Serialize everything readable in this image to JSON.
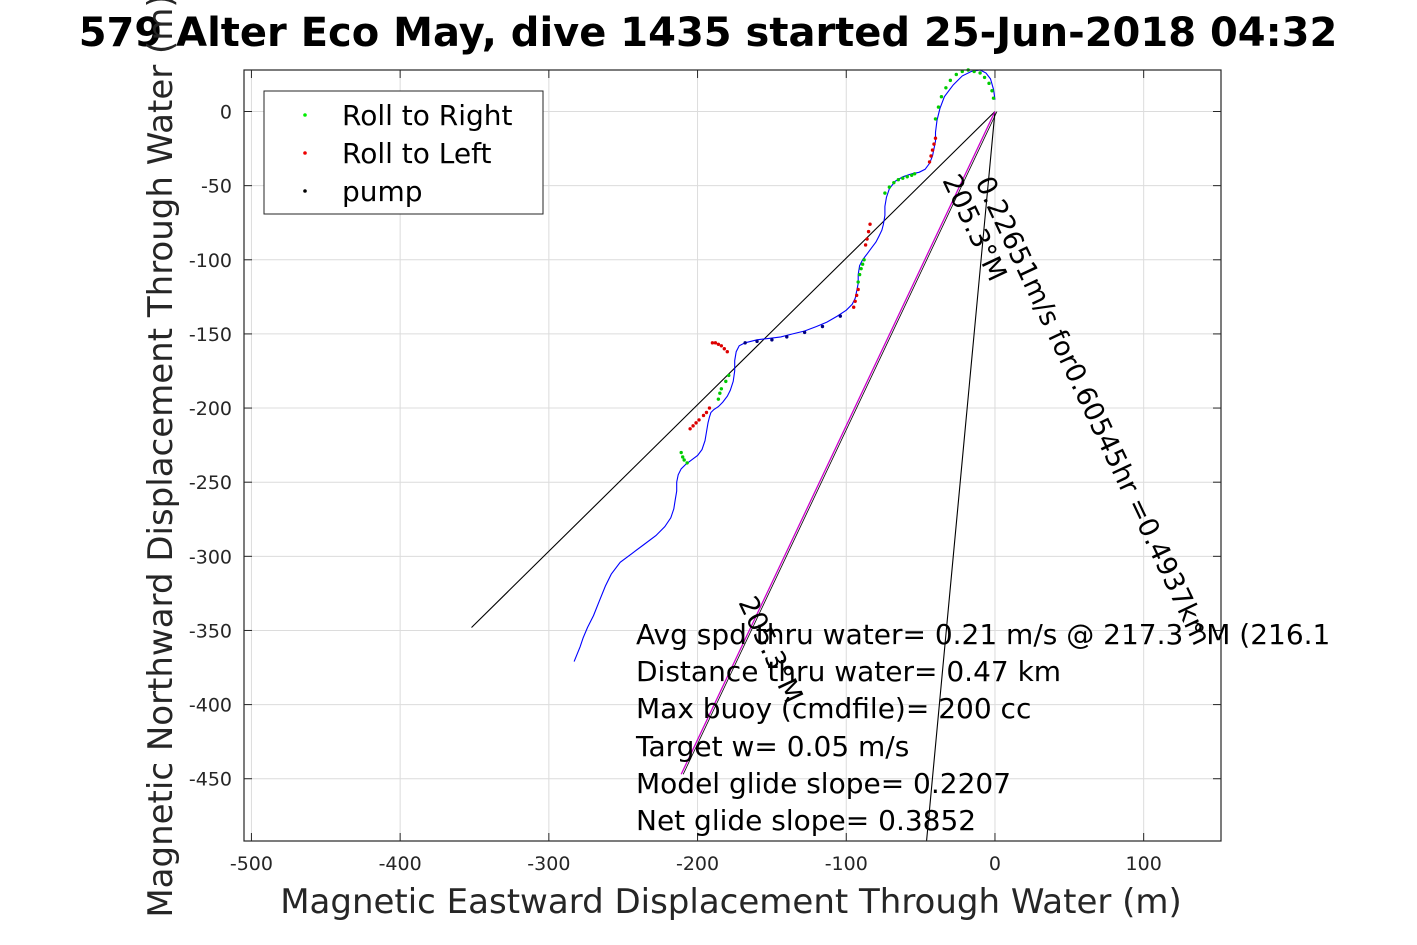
{
  "chart_data": {
    "type": "scatter",
    "title": "579 Alter Eco May, dive 1435 started 25-Jun-2018 04:32",
    "xlabel": "Magnetic Eastward Displacement Through Water (m)",
    "ylabel": "Magnetic Northward Displacement Through Water (m)",
    "xlim": [
      -505,
      152
    ],
    "ylim": [
      -492,
      28
    ],
    "xticks": [
      -500,
      -400,
      -300,
      -200,
      -100,
      0,
      100
    ],
    "yticks": [
      0,
      -50,
      -100,
      -150,
      -200,
      -250,
      -300,
      -350,
      -400,
      -450
    ],
    "grid": true,
    "legend_position": "top-left",
    "colors": {
      "track": "#0000ff",
      "roll_right": "#00cc00",
      "roll_left": "#dd0000",
      "pump": "#000080",
      "model_line": "#cc00cc",
      "ref_lines": "#000000"
    },
    "legend": [
      {
        "key": "roll_right",
        "label": "Roll to Right",
        "color": "#00ee00"
      },
      {
        "key": "roll_left",
        "label": "Roll to Left",
        "color": "#ee0000"
      },
      {
        "key": "pump",
        "label": "pump",
        "color": "#000000"
      }
    ],
    "track": {
      "x": [
        0,
        -1,
        -3,
        -6,
        -10,
        -16,
        -22,
        -28,
        -34,
        -37,
        -39,
        -40,
        -40,
        -41,
        -42,
        -44,
        -47,
        -51,
        -56,
        -62,
        -67,
        -71,
        -73,
        -74,
        -74,
        -75,
        -76,
        -78,
        -80,
        -83,
        -86,
        -89,
        -91,
        -92,
        -92,
        -93,
        -94,
        -96,
        -100,
        -106,
        -113,
        -120,
        -128,
        -136,
        -144,
        -152,
        -160,
        -168,
        -172,
        -174,
        -175,
        -175,
        -176,
        -178,
        -180,
        -183,
        -186,
        -189,
        -191,
        -192,
        -193,
        -194,
        -195,
        -197,
        -200,
        -204,
        -208,
        -211,
        -213,
        -214,
        -214,
        -215,
        -216,
        -218,
        -222,
        -228,
        -236,
        -244,
        -252,
        -258,
        -262,
        -266,
        -270,
        -274,
        -277,
        -279,
        -281,
        -283
      ],
      "y": [
        8,
        15,
        22,
        26,
        28,
        27,
        24,
        18,
        10,
        2,
        -6,
        -14,
        -20,
        -25,
        -30,
        -35,
        -39,
        -41,
        -42,
        -44,
        -47,
        -52,
        -58,
        -64,
        -70,
        -76,
        -80,
        -84,
        -88,
        -92,
        -96,
        -100,
        -104,
        -110,
        -116,
        -121,
        -126,
        -130,
        -134,
        -138,
        -142,
        -145,
        -148,
        -150,
        -152,
        -153,
        -154,
        -156,
        -158,
        -162,
        -168,
        -175,
        -182,
        -188,
        -192,
        -196,
        -199,
        -201,
        -203,
        -206,
        -210,
        -216,
        -222,
        -228,
        -232,
        -235,
        -238,
        -241,
        -245,
        -250,
        -256,
        -262,
        -268,
        -274,
        -280,
        -286,
        -292,
        -298,
        -304,
        -312,
        -320,
        -330,
        -340,
        -348,
        -355,
        -361,
        -366,
        -371
      ]
    },
    "roll_right": {
      "x": [
        -1,
        -2,
        -4,
        -7,
        -10,
        -14,
        -18,
        -22,
        -26,
        -30,
        -33,
        -36,
        -38,
        -40,
        -74,
        -71,
        -68,
        -65,
        -62,
        -59,
        -56,
        -54,
        -92,
        -91,
        -90,
        -89,
        -88,
        -179,
        -181,
        -184,
        -185,
        -186,
        -207,
        -209,
        -210,
        -211
      ],
      "y": [
        9,
        14,
        19,
        23,
        26,
        27,
        28,
        27,
        25,
        21,
        16,
        10,
        3,
        -5,
        -55,
        -51,
        -48,
        -46,
        -45,
        -44,
        -43,
        -42,
        -115,
        -110,
        -106,
        -103,
        -100,
        -178,
        -182,
        -187,
        -190,
        -194,
        -237,
        -235,
        -233,
        -230
      ]
    },
    "roll_left": {
      "x": [
        -40,
        -41,
        -42,
        -43,
        -44,
        -84,
        -85,
        -86,
        -87,
        -92,
        -93,
        -94,
        -95,
        -180,
        -182,
        -184,
        -186,
        -188,
        -190,
        -192,
        -194,
        -196,
        -199,
        -201,
        -203,
        -205
      ],
      "y": [
        -18,
        -22,
        -26,
        -30,
        -34,
        -76,
        -81,
        -86,
        -90,
        -120,
        -124,
        -128,
        -132,
        -162,
        -160,
        -158,
        -157,
        -156,
        -156,
        -200,
        -203,
        -205,
        -208,
        -210,
        -212,
        -214
      ],
      "pump_x": [
        -168,
        -160,
        -150,
        -140,
        -128,
        -116,
        -104
      ],
      "pump_y": [
        -156,
        -155,
        -154,
        -152,
        -149,
        -145,
        -138
      ]
    },
    "reference_lines": [
      {
        "x": [
          0,
          -352
        ],
        "y": [
          0,
          -348
        ]
      },
      {
        "x": [
          0,
          -46
        ],
        "y": [
          0,
          -492
        ]
      }
    ],
    "model_line": {
      "x": [
        0,
        -211
      ],
      "y": [
        0,
        -447
      ]
    },
    "annotations": {
      "rotated_1": "0.22651m/s for0.60545hr =0.4937km",
      "rotated_2": "205.3°M",
      "rotated_3": "205.3°M",
      "stats": [
        "Avg spd thru water=  0.21 m/s @ 217.3 °M (216.1",
        "Distance thru water=  0.47 km",
        "Max buoy (cmdfile)= 200 cc",
        "Target w= 0.05 m/s",
        "Model glide slope= 0.2207",
        "Net glide slope= 0.3852"
      ]
    }
  }
}
